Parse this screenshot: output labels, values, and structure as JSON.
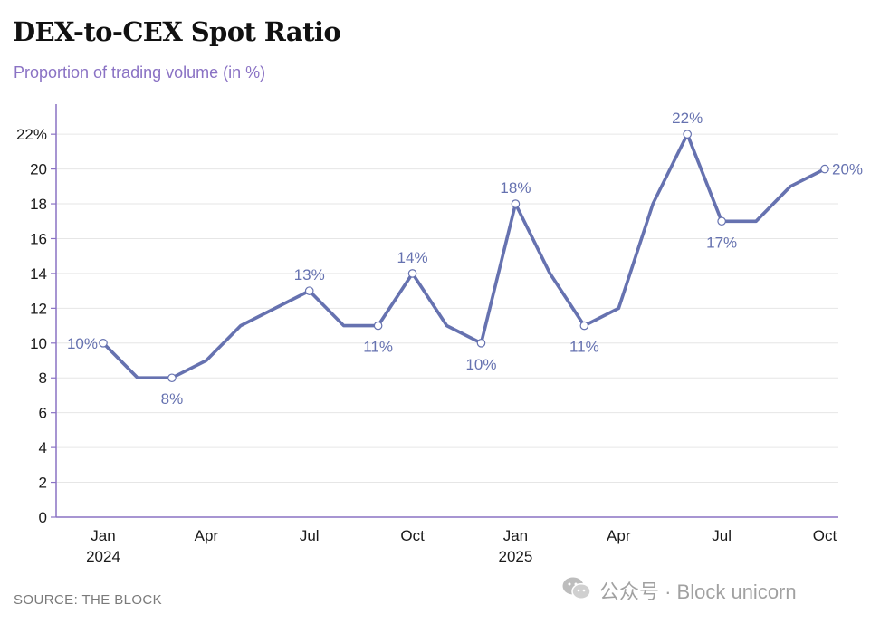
{
  "title": "DEX-to-CEX Spot Ratio",
  "subtitle": "Proportion of trading volume (in %)",
  "source": "SOURCE: THE BLOCK",
  "watermark": "公众号 · Block unicorn",
  "colors": {
    "line": "#6672b0",
    "axis": "#8a72c4",
    "grid": "#e6e6e6",
    "subtitle": "#8a72c4"
  },
  "chart_data": {
    "type": "line",
    "x": [
      "2024-01",
      "2024-02",
      "2024-03",
      "2024-04",
      "2024-05",
      "2024-06",
      "2024-07",
      "2024-08",
      "2024-09",
      "2024-10",
      "2024-11",
      "2024-12",
      "2025-01",
      "2025-02",
      "2025-03",
      "2025-04",
      "2025-05",
      "2025-06",
      "2025-07",
      "2025-08",
      "2025-09",
      "2025-10"
    ],
    "series": [
      {
        "values": [
          10,
          8,
          8,
          9,
          11,
          12,
          13,
          11,
          11,
          14,
          11,
          10,
          18,
          14,
          11,
          12,
          18,
          22,
          17,
          17,
          19,
          20
        ]
      }
    ],
    "data_labels": [
      {
        "x": "2024-01",
        "text": "10%"
      },
      {
        "x": "2024-03",
        "text": "8%"
      },
      {
        "x": "2024-07",
        "text": "13%"
      },
      {
        "x": "2024-09",
        "text": "11%"
      },
      {
        "x": "2024-10",
        "text": "14%"
      },
      {
        "x": "2024-12",
        "text": "10%"
      },
      {
        "x": "2025-01",
        "text": "18%"
      },
      {
        "x": "2025-03",
        "text": "11%"
      },
      {
        "x": "2025-06",
        "text": "22%"
      },
      {
        "x": "2025-07",
        "text": "17%"
      },
      {
        "x": "2025-10",
        "text": "20%"
      }
    ],
    "y_ticks": [
      {
        "value": 0,
        "label": "0"
      },
      {
        "value": 2,
        "label": "2"
      },
      {
        "value": 4,
        "label": "4"
      },
      {
        "value": 6,
        "label": "6"
      },
      {
        "value": 8,
        "label": "8"
      },
      {
        "value": 10,
        "label": "10"
      },
      {
        "value": 12,
        "label": "12"
      },
      {
        "value": 14,
        "label": "14"
      },
      {
        "value": 16,
        "label": "16"
      },
      {
        "value": 18,
        "label": "18"
      },
      {
        "value": 20,
        "label": "20"
      },
      {
        "value": 22,
        "label": "22%"
      }
    ],
    "x_ticks": [
      {
        "x": "2024-01",
        "label": "Jan",
        "year": "2024"
      },
      {
        "x": "2024-04",
        "label": "Apr"
      },
      {
        "x": "2024-07",
        "label": "Jul"
      },
      {
        "x": "2024-10",
        "label": "Oct"
      },
      {
        "x": "2025-01",
        "label": "Jan",
        "year": "2025"
      },
      {
        "x": "2025-04",
        "label": "Apr"
      },
      {
        "x": "2025-07",
        "label": "Jul"
      },
      {
        "x": "2025-10",
        "label": "Oct"
      }
    ],
    "ylim": [
      0,
      23.5
    ],
    "grid": true,
    "legend": "none",
    "markers": "hollow circles at labeled points"
  }
}
